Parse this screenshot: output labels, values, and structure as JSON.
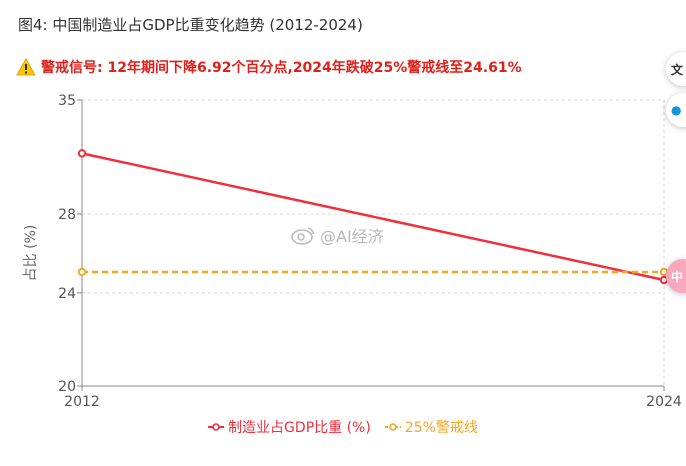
{
  "header": {
    "title": "图4: 中国制造业占GDP比重变化趋势 (2012-2024)",
    "warning": "警戒信号: 12年期间下降6.92个百分点,2024年跌破25%警戒线至24.61%",
    "warning_icon": "warning-triangle-icon"
  },
  "watermark": {
    "text": "@AI经济",
    "icon": "weibo-eye-icon"
  },
  "colors": {
    "series": "#ef2f3c",
    "threshold": "#f5a623",
    "warning_text": "#e0201b"
  },
  "chart_data": {
    "type": "line",
    "title": "图4: 中国制造业占GDP比重变化趋势 (2012-2024)",
    "xlabel": "",
    "ylabel": "占比 (%)",
    "x": [
      2012,
      2024
    ],
    "x_ticks": [
      "2012",
      "2024"
    ],
    "y_ticks": [
      "20",
      "24",
      "28",
      "35"
    ],
    "ylim": [
      20,
      35
    ],
    "y_scale": "log",
    "grid": true,
    "legend_position": "bottom",
    "series": [
      {
        "name": "制造业占GDP比重 (%)",
        "values": [
          31.53,
          24.61
        ],
        "color": "#ef2f3c",
        "style": "solid"
      },
      {
        "name": "25%警戒线",
        "values": [
          25,
          25
        ],
        "color": "#f5a623",
        "style": "dashed"
      }
    ]
  }
}
